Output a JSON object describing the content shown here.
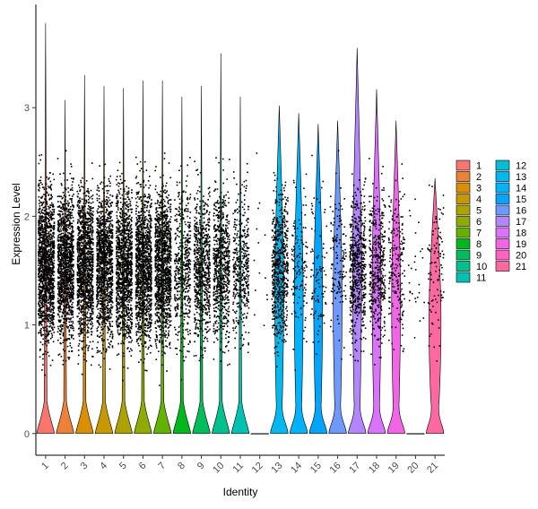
{
  "chart_data": {
    "type": "violin",
    "xlabel": "Identity",
    "ylabel": "Expression Level",
    "ylim": [
      -0.2,
      3.95
    ],
    "yticks": [
      0,
      1,
      2,
      3
    ],
    "grid": false,
    "legend_position": "right",
    "categories": [
      "1",
      "2",
      "3",
      "4",
      "5",
      "6",
      "7",
      "8",
      "9",
      "10",
      "11",
      "12",
      "13",
      "14",
      "15",
      "16",
      "17",
      "18",
      "19",
      "20",
      "21"
    ],
    "colors": [
      "#F8766D",
      "#EC8239",
      "#DB8E00",
      "#C79800",
      "#AEA200",
      "#8FAA00",
      "#64B200",
      "#00B81B",
      "#00BD5C",
      "#00C08D",
      "#00C1B2",
      "#00BFD4",
      "#00BAEF",
      "#00B2FF",
      "#00A5FF",
      "#6E9AFF",
      "#B385FF",
      "#DB72FB",
      "#F265E7",
      "#FF61C7",
      "#FF68A1"
    ],
    "max_values": [
      3.78,
      3.07,
      3.3,
      3.2,
      3.18,
      3.25,
      3.25,
      3.1,
      3.2,
      3.5,
      3.1,
      2.88,
      3.02,
      2.95,
      2.85,
      2.88,
      3.55,
      3.17,
      2.88,
      2.85,
      2.35
    ],
    "point_density": [
      1.0,
      0.9,
      0.9,
      0.85,
      0.85,
      0.85,
      0.85,
      0.35,
      0.5,
      0.5,
      0.3,
      0.01,
      0.45,
      0.1,
      0.07,
      0.1,
      0.4,
      0.3,
      0.15,
      0.02,
      0.07
    ]
  }
}
